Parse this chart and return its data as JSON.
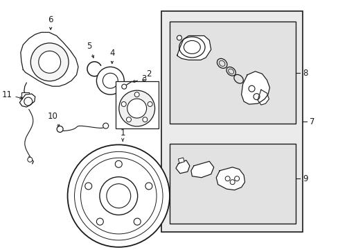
{
  "bg_color": "#ffffff",
  "line_color": "#1a1a1a",
  "box_fill_outer": "#e8e8e8",
  "box_fill_inner": "#e0e0e0",
  "fig_width": 4.89,
  "fig_height": 3.6,
  "dpi": 100,
  "xlim": [
    0,
    9.78
  ],
  "ylim": [
    0,
    7.2
  ]
}
